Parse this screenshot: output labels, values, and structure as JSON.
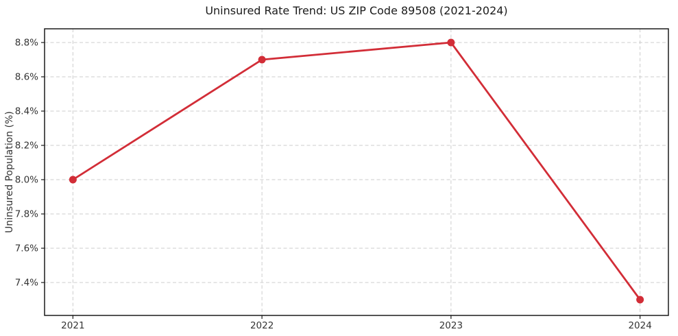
{
  "page": {
    "background": "#ffffff"
  },
  "chart_data": {
    "type": "line",
    "title": "Uninsured Rate Trend: US ZIP Code 89508 (2021-2024)",
    "xlabel": "",
    "ylabel": "Uninsured Population (%)",
    "x": [
      2021,
      2022,
      2023,
      2024
    ],
    "series": [
      {
        "name": "Uninsured Rate",
        "values": [
          8.0,
          8.7,
          8.8,
          7.3
        ],
        "color": "#d22d37",
        "marker": "circle"
      }
    ],
    "x_ticks": [
      2021,
      2022,
      2023,
      2024
    ],
    "x_tick_labels": [
      "2021",
      "2022",
      "2023",
      "2024"
    ],
    "y_ticks": [
      7.4,
      7.6,
      7.8,
      8.0,
      8.2,
      8.4,
      8.6,
      8.8
    ],
    "y_tick_labels": [
      "7.4%",
      "7.6%",
      "7.8%",
      "8.0%",
      "8.2%",
      "8.4%",
      "8.6%",
      "8.8%"
    ],
    "xlim": [
      2020.85,
      2024.15
    ],
    "ylim": [
      7.208,
      8.88
    ],
    "grid": true,
    "grid_style": "dashed",
    "legend_position": "none",
    "colors": {
      "line": "#d22d37",
      "grid": "#cccccc",
      "spine": "#1a1a1a",
      "tick_label": "#333333",
      "title": "#1a1a1a"
    }
  }
}
